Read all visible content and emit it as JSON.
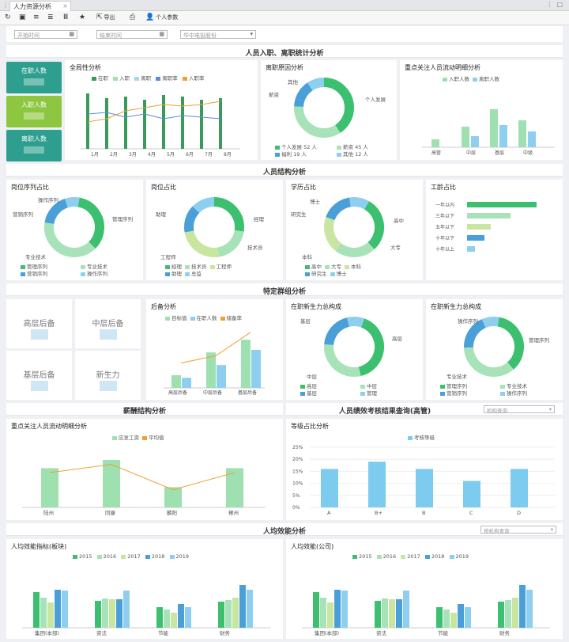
{
  "tab": {
    "title": "人力资源分析",
    "close": "×",
    "more": "⋮",
    "win": "□"
  },
  "toolbar": {
    "export_label": "导出",
    "personal_label": "个人参数"
  },
  "filters": {
    "start_placeholder": "开始时间",
    "end_placeholder": "结束时间",
    "org_placeholder": "华中电投股份"
  },
  "sections": {
    "s1": "人员入职、离职统计分析",
    "s2": "人员结构分析",
    "s3": "特定群组分析",
    "s4": "薪酬结构分析",
    "s5": "人员绩效考核结果查询(高管)",
    "s6": "人均效能分析"
  },
  "kpis": [
    {
      "label": "在职人数",
      "color": "#2e9e8f"
    },
    {
      "label": "入职人数",
      "color": "#8dc63f"
    },
    {
      "label": "离职人数",
      "color": "#2e9e8f"
    }
  ],
  "comprehensive": {
    "title": "全局性分析",
    "legend": [
      "在职",
      "入职",
      "离职",
      "离职率",
      "入职率"
    ],
    "colors": [
      "#3a9a5c",
      "#9ee0b0",
      "#a8d8f0",
      "#5b8dd6",
      "#f0a030"
    ]
  },
  "leave_reasons": {
    "title": "离职原因分析",
    "labels": {
      "personal": "个人发展",
      "pay": "薪资",
      "other": "其他"
    },
    "legend": [
      "个人发展 52 人",
      "薪资 45 人",
      "福利 19 人",
      "其他 12 人"
    ],
    "colors": [
      "#3cc06f",
      "#a7e2b8",
      "#4a9fd8",
      "#8ecff0"
    ]
  },
  "focus_flow": {
    "title": "重点关注人员流动明细分析",
    "legend": [
      "入职人数",
      "离职人数"
    ],
    "colors": [
      "#9ee0b0",
      "#8ecff0"
    ]
  },
  "position_seq": {
    "title": "岗位序列占比",
    "labels": {
      "ops": "操作序列",
      "mgmt": "管理序列",
      "mgmt2": "营销序列",
      "tech": "专业技术"
    },
    "legend": [
      "营销序列",
      "专业技术",
      "管理序列",
      "操作序列"
    ]
  },
  "position_ratio": {
    "title": "岗位占比",
    "labels": {
      "a": "助理",
      "b": "经理",
      "c": "技术员",
      "d": "工程师"
    },
    "legend": [
      "经理",
      "技术员",
      "工程师",
      "助理",
      "总监"
    ]
  },
  "education": {
    "title": "学历占比",
    "labels": {
      "a": "博士",
      "b": "研究生",
      "c": "高中",
      "d": "大专",
      "e": "本科"
    },
    "legend": [
      "高中",
      "大专",
      "本科",
      "研究生",
      "博士"
    ]
  },
  "seniority": {
    "title": "工龄占比",
    "categories": [
      "一年以内",
      "三年以下",
      "五年以下",
      "十年以下",
      "十年以上"
    ],
    "values": [
      88,
      55,
      30,
      22,
      10
    ],
    "colors": [
      "#3cc06f",
      "#a7e2b8",
      "#c8e6a0",
      "#4a9fd8",
      "#8ecff0"
    ]
  },
  "groups": [
    {
      "label": "高层后备"
    },
    {
      "label": "中层后备"
    },
    {
      "label": "基层后备"
    },
    {
      "label": "新生力"
    }
  ],
  "reserve": {
    "title": "后备分析",
    "legend": [
      "目标值",
      "在职人数",
      "储备率"
    ],
    "categories": [
      "高层后备",
      "中层后备",
      "基层后备"
    ],
    "target": [
      10,
      28,
      38
    ],
    "actual": [
      8,
      18,
      30
    ],
    "rate": [
      35,
      45,
      78
    ],
    "colors": [
      "#9ee0b0",
      "#8ecff0",
      "#f0a030"
    ]
  },
  "new_power": {
    "title": "在职新生力总构成",
    "labels": {
      "a": "高层",
      "b": "基层",
      "c": "中层"
    },
    "legend": [
      "高层",
      "中层",
      "基层",
      "管理"
    ]
  },
  "new_power2": {
    "title": "在职新生力总构成",
    "labels": {
      "a": "操作序列",
      "b": "管理序列",
      "c": "专业技术"
    },
    "legend": [
      "管理序列",
      "专业技术",
      "营销序列",
      "操作序列"
    ]
  },
  "salary": {
    "title": "重点关注人员流动明细分析",
    "legend": [
      "应发工资",
      "平均值"
    ],
    "categories": [
      "陆州",
      "同康",
      "麟阳",
      "郴州"
    ],
    "values": [
      62,
      75,
      32,
      62
    ],
    "avg": [
      55,
      68,
      28,
      55
    ]
  },
  "perf": {
    "title": "等级占比分析",
    "select": "机构查询",
    "legend": [
      "考核等级"
    ],
    "categories": [
      "A",
      "B+",
      "B",
      "C",
      "D"
    ],
    "values": [
      16,
      19,
      16,
      11,
      16
    ],
    "yticks": [
      "25%",
      "20%",
      "15%",
      "10%",
      "5%",
      "0%"
    ]
  },
  "efficiency": {
    "select": "按机构查询",
    "left_title": "人均效能指标(板块)",
    "right_title": "人均效能(公司)",
    "years": [
      "2015",
      "2016",
      "2017",
      "2018",
      "2019"
    ],
    "colors": [
      "#3cc06f",
      "#a7e2b8",
      "#c8e6a0",
      "#4a9fd8",
      "#8ecff0"
    ],
    "left_categories": [
      "集团(本部)",
      "资法",
      "节能",
      "财务"
    ],
    "right_categories": [
      "集团(本部)",
      "资法",
      "节能",
      "财务"
    ],
    "values": [
      [
        45,
        38,
        32,
        48,
        47
      ],
      [
        34,
        37,
        36,
        36,
        47
      ],
      [
        26,
        23,
        19,
        30,
        26
      ],
      [
        33,
        35,
        38,
        54,
        48
      ]
    ]
  }
}
